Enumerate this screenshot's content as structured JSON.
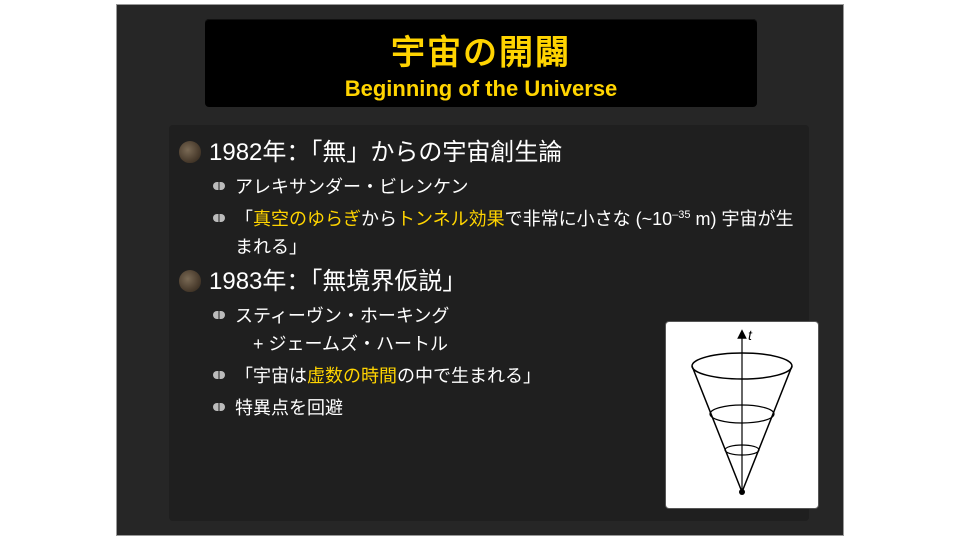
{
  "title": {
    "jp": "宇宙の開闢",
    "en": "Beginning of the Universe"
  },
  "items": [
    {
      "head": "1982年：「無」からの宇宙創生論",
      "subs": [
        {
          "html": "アレキサンダー・ビレンケン"
        },
        {
          "html": "「<span class=hl>真空のゆらぎ</span>から<span class=hl>トンネル効果</span>で非常に小さな (~10<sup>–35</sup> m) 宇宙が生まれる」"
        }
      ]
    },
    {
      "head": "1983年：「無境界仮説」",
      "subs": [
        {
          "html": "スティーヴン・ホーキング<br>　+ ジェームズ・ハートル"
        },
        {
          "html": "「宇宙は<span class=hl>虚数の時間</span>の中で生まれる」"
        },
        {
          "html": "特異点を回避"
        }
      ]
    }
  ],
  "figure": {
    "axis_label": "t"
  },
  "colors": {
    "accent": "#ffd400",
    "bg": "#262626",
    "panel": "#1f1f1f",
    "title_bg": "#000000"
  }
}
